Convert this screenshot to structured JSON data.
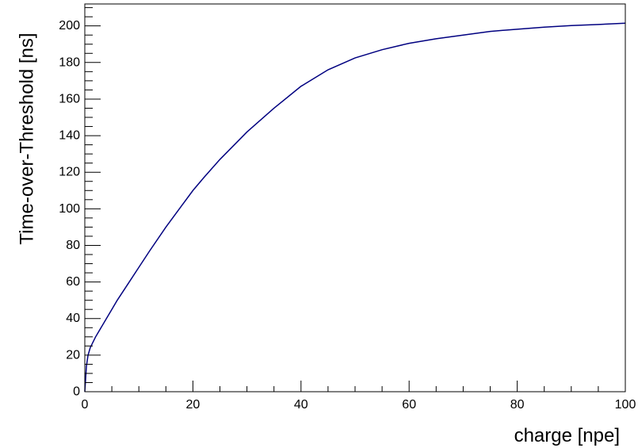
{
  "chart_data": {
    "type": "line",
    "title": "",
    "xlabel": "charge [npe]",
    "ylabel": "Time-over-Threshold [ns]",
    "xlim": [
      0,
      100
    ],
    "ylim": [
      0,
      212
    ],
    "x_ticks": [
      0,
      20,
      40,
      60,
      80,
      100
    ],
    "y_ticks": [
      0,
      20,
      40,
      60,
      80,
      100,
      120,
      140,
      160,
      180,
      200
    ],
    "grid": false,
    "legend": "none",
    "line_color": "#000080",
    "series": [
      {
        "x": [
          0,
          0.3,
          0.6,
          1,
          1.5,
          2,
          3,
          4,
          5,
          6,
          8,
          10,
          12,
          15,
          18,
          20,
          22,
          25,
          28,
          30,
          35,
          40,
          45,
          50,
          55,
          60,
          65,
          70,
          75,
          80,
          85,
          90,
          95,
          100
        ],
        "values": [
          0,
          14,
          20,
          24,
          27,
          30,
          35,
          40,
          45,
          50,
          59,
          68,
          77,
          90,
          102,
          110,
          117,
          127,
          136,
          142,
          155,
          167,
          176,
          182.5,
          187,
          190.5,
          193,
          195,
          197,
          198.2,
          199.3,
          200.2,
          200.8,
          201.5
        ]
      }
    ]
  }
}
